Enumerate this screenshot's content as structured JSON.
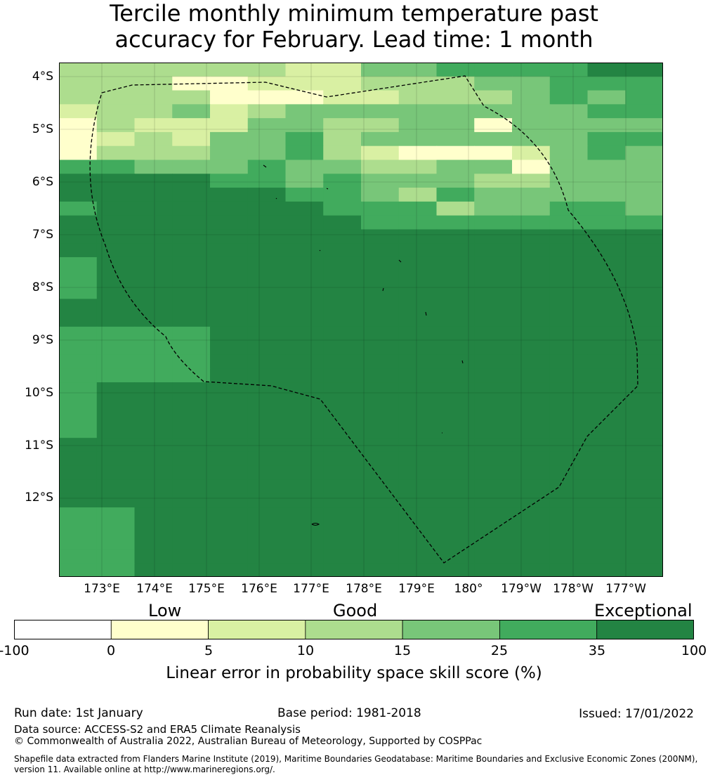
{
  "title": {
    "line1": "Tercile monthly minimum temperature past",
    "line2": "accuracy for February. Lead time: 1 month"
  },
  "map": {
    "lat_labels": [
      "4°S",
      "5°S",
      "6°S",
      "7°S",
      "8°S",
      "9°S",
      "10°S",
      "11°S",
      "12°S"
    ],
    "lon_labels": [
      "173°E",
      "174°E",
      "175°E",
      "176°E",
      "177°E",
      "178°E",
      "179°E",
      "180°",
      "179°W",
      "178°W",
      "177°W"
    ],
    "colors": [
      "#ffffff",
      "#ffffcc",
      "#d9f0a3",
      "#addd8e",
      "#78c679",
      "#41ab5d",
      "#238443"
    ],
    "grid_rows": [
      "3333332244555566",
      "3331122233344555",
      "3333111223334545",
      "2334234444444455",
      "1322244334414444",
      "1232445344444455",
      "1333445321112454",
      "5544454433441444",
      "6666554544433444",
      "6666665543544444",
      "5666666555344554",
      "6666666655555555",
      "6666666666666666",
      "6666666666666666",
      "5666666666666666",
      "5666666666666666",
      "5666666666666666",
      "6666666666666666",
      "6666666666666666",
      "5555666666666666",
      "5555666666666666",
      "5555666666666666",
      "5555666666666666",
      "5666666666666666",
      "5666666666666666",
      "5666666666666666",
      "5666666666666666",
      "6666666666666666",
      "6666666666666666",
      "6666666666666666",
      "6666666666666666",
      "6666666666666666",
      "5566666666666666",
      "5566666666666666",
      "5566666666666666",
      "5566666666666666",
      "5566666666666666"
    ]
  },
  "colorbar": {
    "categories": [
      "Low",
      "Good",
      "Exceptional"
    ],
    "ticks": [
      "-100",
      "0",
      "5",
      "10",
      "15",
      "25",
      "35",
      "100"
    ],
    "label": "Linear error in probability space skill score (%)"
  },
  "footer": {
    "run_date": "Run date: 1st January",
    "base_period": "Base period: 1981-2018",
    "issued": "Issued: 17/01/2022",
    "data_source": "Data source: ACCESS-S2 and ERA5 Climate Reanalysis",
    "copyright": "© Commonwealth of Australia 2022, Australian Bureau of Meteorology, Supported by COSPPac",
    "shapefile_line1": "Shapefile data extracted from Flanders Marine Institute (2019), Maritime Boundaries Geodatabase: Maritime Boundaries and Exclusive Economic Zones (200NM),",
    "shapefile_line2": "version 11. Available online at http://www.marineregions.org/."
  }
}
